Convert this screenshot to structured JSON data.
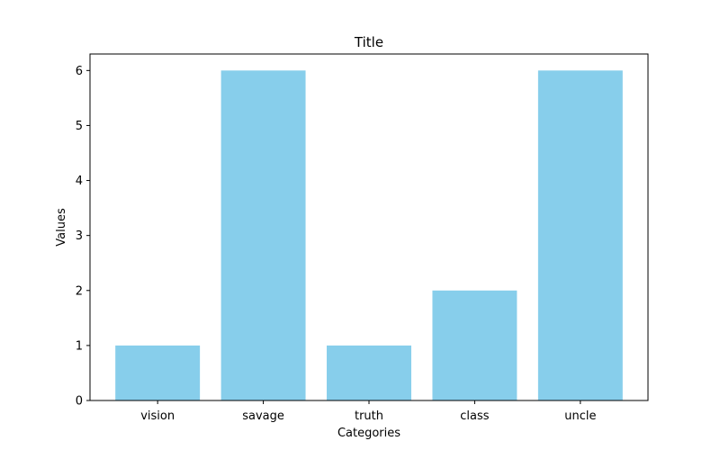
{
  "chart_data": {
    "type": "bar",
    "title": "Title",
    "xlabel": "Categories",
    "ylabel": "Values",
    "categories": [
      "vision",
      "savage",
      "truth",
      "class",
      "uncle"
    ],
    "values": [
      1,
      6,
      1,
      2,
      6
    ],
    "ylim": [
      0,
      6.3
    ],
    "yticks": [
      0,
      1,
      2,
      3,
      4,
      5,
      6
    ],
    "bar_color": "#87ceeb",
    "grid": false
  }
}
